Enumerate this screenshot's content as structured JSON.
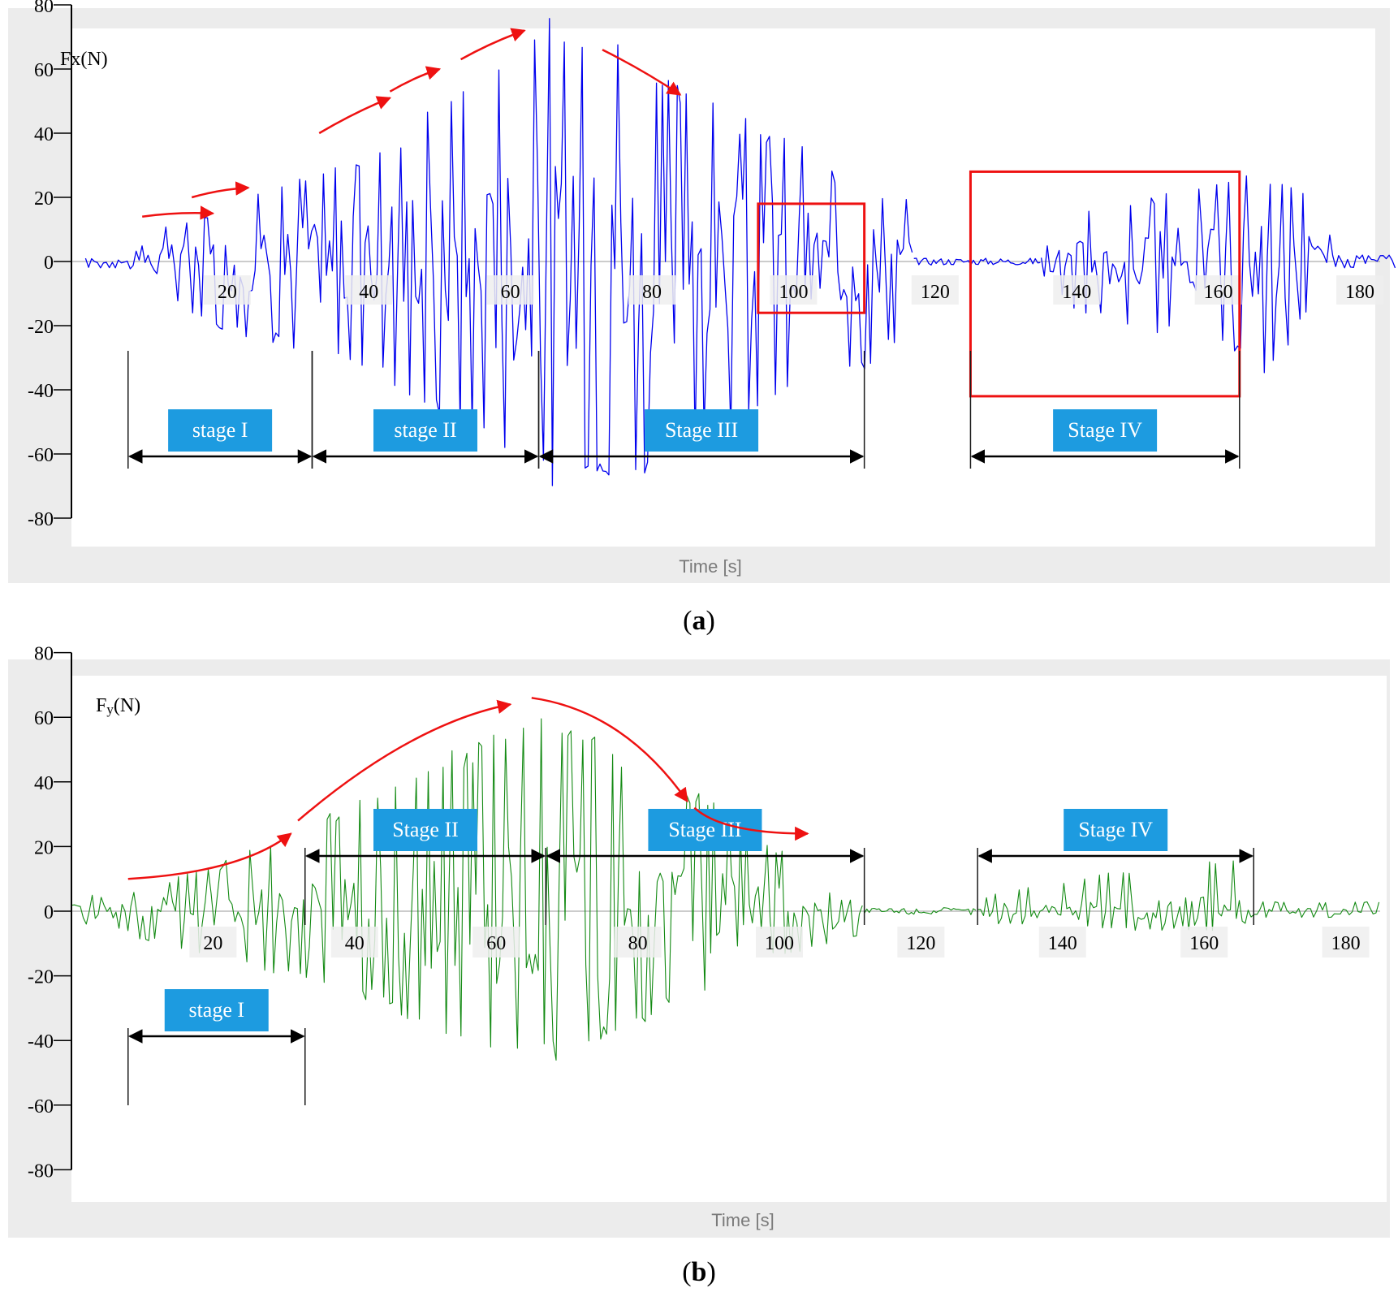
{
  "chart_data": [
    {
      "type": "line",
      "panel_label": "a",
      "ylabel": "Fx(N)",
      "xlabel": "Time [s]",
      "ylim": [
        -80,
        80
      ],
      "xlim": [
        0,
        185
      ],
      "y_ticks": [
        80,
        60,
        40,
        20,
        0,
        -20,
        -40,
        -60,
        -80
      ],
      "x_ticks": [
        20,
        40,
        60,
        80,
        100,
        120,
        140,
        160,
        180
      ],
      "series": [
        {
          "color": "#0000ee",
          "style": "oscillation envelope",
          "segments": [
            {
              "x": [
                0,
                6,
                10,
                20,
                30,
                40,
                50,
                60,
                65,
                70,
                75,
                80,
                90,
                100,
                110,
                117
              ],
              "upper": [
                1,
                1,
                10,
                18,
                27,
                34,
                50,
                70,
                78,
                76,
                72,
                62,
                48,
                38,
                22,
                20
              ],
              "lower": [
                -2,
                -2,
                -10,
                -22,
                -28,
                -35,
                -50,
                -66,
                -70,
                -72,
                -74,
                -68,
                -54,
                -44,
                -36,
                -20
              ]
            },
            {
              "x": [
                117,
                118,
                135
              ],
              "upper": [
                2,
                2,
                2
              ],
              "lower": [
                -2,
                -2,
                -2
              ]
            },
            {
              "x": [
                135,
                137,
                140,
                150,
                160,
                167,
                173,
                177,
                185
              ],
              "upper": [
                4,
                8,
                17,
                20,
                28,
                26,
                22,
                2,
                2
              ],
              "lower": [
                -4,
                -10,
                -16,
                -22,
                -24,
                -38,
                -14,
                -2,
                -2
              ]
            }
          ]
        }
      ],
      "stages": [
        {
          "label": "stage I",
          "x_start": 6,
          "x_end": 32
        },
        {
          "label": "stage II",
          "x_start": 32,
          "x_end": 64
        },
        {
          "label": "Stage III",
          "x_start": 64,
          "x_end": 110
        },
        {
          "label": "Stage IV",
          "x_start": 125,
          "x_end": 163
        }
      ],
      "highlight_boxes": [
        {
          "x_start": 95,
          "x_end": 110,
          "y_top": 18,
          "y_bottom": -16
        },
        {
          "x_start": 125,
          "x_end": 163,
          "y_top": 28,
          "y_bottom": -42
        }
      ],
      "annotation_color": "#ee1111",
      "trend": "rising amplitude through stages I–II, falling in stage III"
    },
    {
      "type": "line",
      "panel_label": "b",
      "ylabel_main": "F",
      "ylabel_sub": "y",
      "ylabel_unit": "(N)",
      "xlabel": "Time [s]",
      "ylim": [
        -80,
        80
      ],
      "xlim": [
        0,
        185
      ],
      "y_ticks": [
        80,
        60,
        40,
        20,
        0,
        -20,
        -40,
        -60,
        -80
      ],
      "x_ticks": [
        20,
        40,
        60,
        80,
        100,
        120,
        140,
        160,
        180
      ],
      "series": [
        {
          "color": "#138a13",
          "style": "oscillation envelope",
          "segments": [
            {
              "x": [
                0,
                7,
                10,
                20,
                30,
                40,
                50,
                60,
                66,
                70,
                80,
                90,
                100,
                112
              ],
              "upper": [
                5,
                5,
                8,
                14,
                24,
                34,
                46,
                57,
                61,
                60,
                48,
                36,
                20,
                12
              ],
              "lower": [
                -4,
                -6,
                -9,
                -14,
                -20,
                -26,
                -36,
                -44,
                -48,
                -46,
                -36,
                -24,
                -14,
                -8
              ]
            },
            {
              "x": [
                112,
                113,
                128
              ],
              "upper": [
                2,
                2,
                2
              ],
              "lower": [
                -2,
                -2,
                -2
              ]
            },
            {
              "x": [
                128,
                130,
                140,
                150,
                160,
                165,
                167,
                185
              ],
              "upper": [
                3,
                6,
                10,
                13,
                16,
                16,
                3,
                3
              ],
              "lower": [
                -3,
                -4,
                -5,
                -6,
                -6,
                -6,
                -2,
                -2
              ]
            }
          ]
        }
      ],
      "stages": [
        {
          "label": "stage I",
          "x_start": 8,
          "x_end": 33
        },
        {
          "label": "Stage II",
          "x_start": 33,
          "x_end": 67
        },
        {
          "label": "Stage III",
          "x_start": 67,
          "x_end": 112
        },
        {
          "label": "Stage IV",
          "x_start": 128,
          "x_end": 167
        }
      ],
      "annotation_color": "#ee1111",
      "trend": "smooth rise to peak near 66 s then decay"
    }
  ],
  "captions": {
    "a": "a",
    "b": "b"
  }
}
